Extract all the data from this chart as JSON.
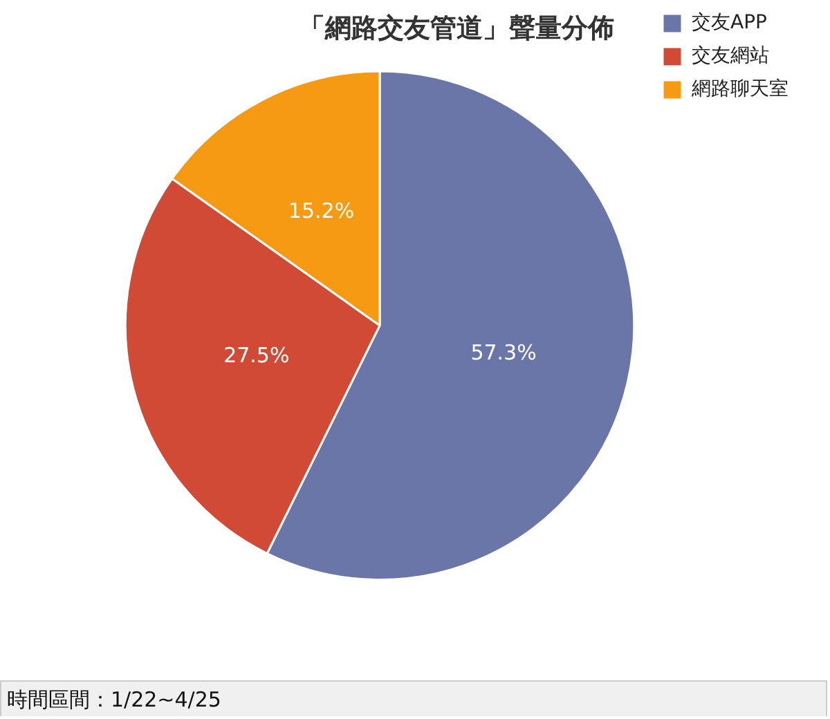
{
  "chart_data": {
    "type": "pie",
    "title": "「網路交友管道」聲量分佈",
    "categories": [
      "交友APP",
      "交友網站",
      "網路聊天室"
    ],
    "values": [
      57.3,
      27.5,
      15.2
    ],
    "colors": [
      "#6b76a8",
      "#d04a35",
      "#f59a12"
    ],
    "value_labels": [
      "57.3%",
      "27.5%",
      "15.2%"
    ],
    "legend": "top right",
    "annotations": [
      "時間區間：1/22~4/25"
    ]
  }
}
